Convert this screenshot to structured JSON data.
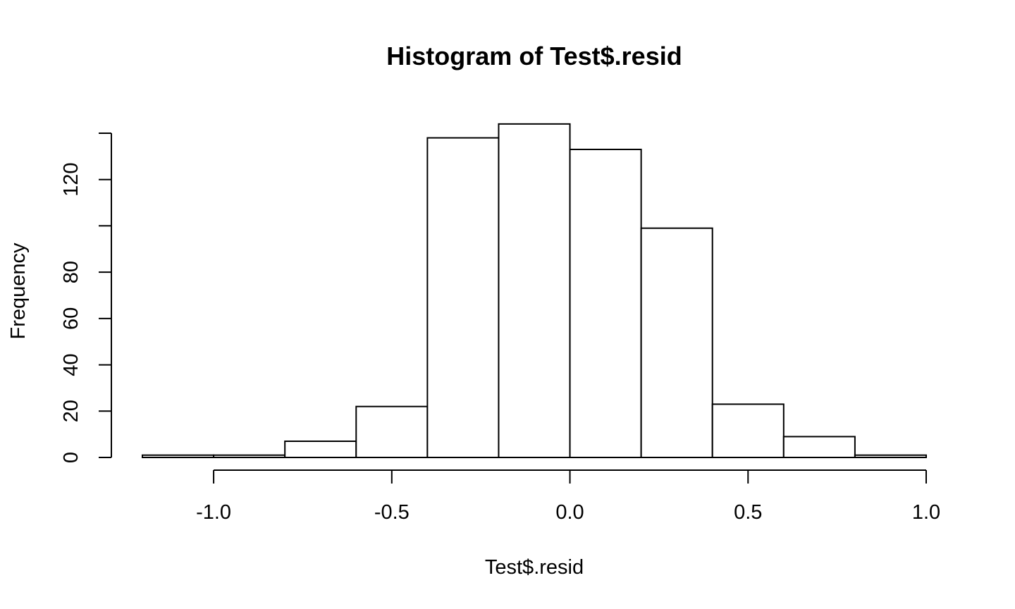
{
  "chart_data": {
    "type": "bar",
    "subtype": "histogram",
    "title": "Histogram of Test$.resid",
    "xlabel": "Test$.resid",
    "ylabel": "Frequency",
    "bin_edges": [
      -1.2,
      -1.0,
      -0.8,
      -0.6,
      -0.4,
      -0.2,
      0.0,
      0.2,
      0.4,
      0.6,
      0.8,
      1.0
    ],
    "counts": [
      1,
      1,
      7,
      22,
      138,
      144,
      133,
      99,
      23,
      9,
      1
    ],
    "xlim": [
      -1.2,
      1.0
    ],
    "ylim": [
      0,
      140
    ],
    "x_ticks": [
      -1.0,
      -0.5,
      0.0,
      0.5,
      1.0
    ],
    "x_tick_labels": [
      "-1.0",
      "-0.5",
      "0.0",
      "0.5",
      "1.0"
    ],
    "y_ticks": [
      0,
      20,
      40,
      60,
      80,
      100,
      120,
      140
    ],
    "y_tick_labels": [
      "0",
      "20",
      "40",
      "60",
      "80",
      "",
      "120",
      ""
    ],
    "grid": false,
    "legend": "none",
    "bar_fill": "#ffffff",
    "bar_stroke": "#000000"
  }
}
